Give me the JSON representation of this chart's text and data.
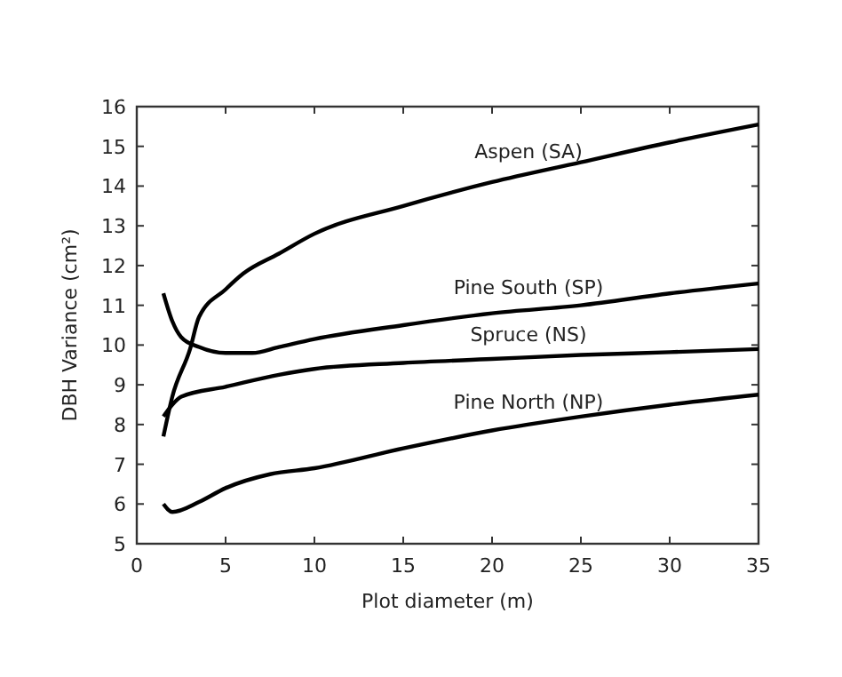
{
  "chart_data": {
    "type": "line",
    "xlabel": "Plot diameter (m)",
    "ylabel": "DBH Variance (cm²)",
    "xlim": [
      0,
      35
    ],
    "ylim": [
      5,
      16
    ],
    "xticks": [
      0,
      5,
      10,
      15,
      20,
      25,
      30,
      35
    ],
    "yticks": [
      5,
      6,
      7,
      8,
      9,
      10,
      11,
      12,
      13,
      14,
      15,
      16
    ],
    "grid": false,
    "legend": false,
    "marker": "none",
    "line_style": "solid",
    "series": [
      {
        "name": "Aspen (SA)",
        "color": "#000000",
        "x": [
          1.5,
          2,
          3,
          3.5,
          5,
          6,
          8,
          10,
          15,
          20,
          25,
          30,
          35
        ],
        "values": [
          7.7,
          8.7,
          9.9,
          10.7,
          11.4,
          11.8,
          12.3,
          12.8,
          13.5,
          14.1,
          14.6,
          15.1,
          15.55
        ]
      },
      {
        "name": "Pine South (SP)",
        "color": "#000000",
        "x": [
          1.5,
          2,
          2.5,
          3.5,
          5,
          6.5,
          8,
          10,
          15,
          20,
          25,
          30,
          35
        ],
        "values": [
          11.3,
          10.6,
          10.2,
          9.95,
          9.8,
          9.8,
          9.95,
          10.15,
          10.5,
          10.8,
          11.0,
          11.3,
          11.55
        ]
      },
      {
        "name": "Spruce (NS)",
        "color": "#000000",
        "x": [
          1.5,
          2,
          2.5,
          5,
          8,
          10,
          15,
          20,
          25,
          30,
          35
        ],
        "values": [
          8.2,
          8.5,
          8.7,
          8.95,
          9.25,
          9.4,
          9.55,
          9.65,
          9.75,
          9.82,
          9.9
        ]
      },
      {
        "name": "Pine North (NP)",
        "color": "#000000",
        "x": [
          1.5,
          2,
          3.5,
          5,
          7.5,
          10,
          15,
          20,
          25,
          30,
          35
        ],
        "values": [
          6.0,
          5.8,
          6.05,
          6.4,
          6.75,
          6.9,
          7.4,
          7.85,
          8.2,
          8.5,
          8.75
        ]
      }
    ]
  }
}
